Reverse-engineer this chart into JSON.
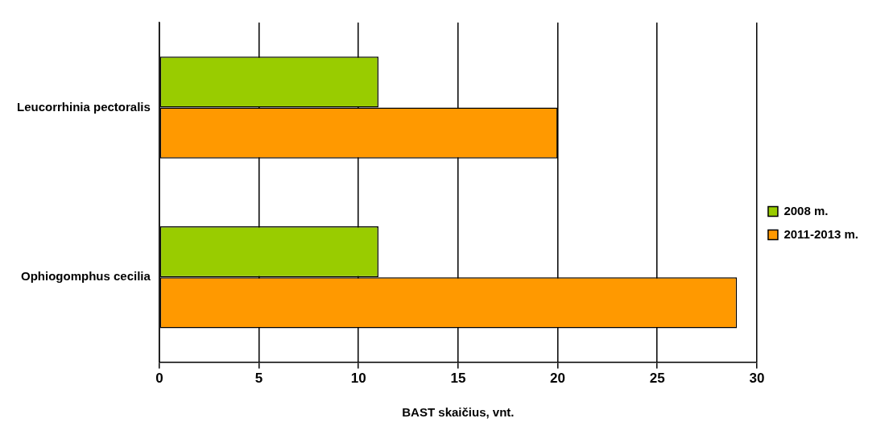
{
  "chart_data": {
    "type": "bar",
    "orientation": "horizontal",
    "xlabel": "BAST skaičius, vnt.",
    "categories": [
      "Leucorrhinia pectoralis",
      "Ophiogomphus cecilia"
    ],
    "series": [
      {
        "name": "2008 m.",
        "color": "#99cc00",
        "values": [
          11,
          11
        ]
      },
      {
        "name": "2011-2013 m.",
        "color": "#ff9900",
        "values": [
          20,
          29
        ]
      }
    ],
    "xlim": [
      0,
      30
    ],
    "xticks": [
      0,
      5,
      10,
      15,
      20,
      25,
      30
    ],
    "grid": "x",
    "legend": "right"
  }
}
